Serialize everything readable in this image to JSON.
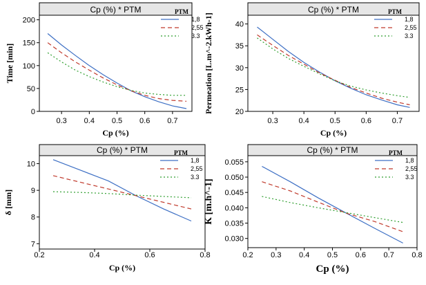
{
  "colors": {
    "series_1_8": "#3d6fc4",
    "series_2_55": "#c0392b",
    "series_3_3": "#2e9e2e",
    "frame": "#000000",
    "title_band": "#e6e6e6"
  },
  "chart_data": [
    {
      "type": "line",
      "title": "Cp (%) * PTM",
      "xlabel": "Cp (%)",
      "ylabel": "Time [min]",
      "xlim": [
        0.22,
        0.77
      ],
      "ylim": [
        0,
        210
      ],
      "xticks": [
        "0.3",
        "0.4",
        "0.5",
        "0.6",
        "0.7"
      ],
      "yticks": [
        "0",
        "50",
        "100",
        "150",
        "200"
      ],
      "legend_title": "PTM",
      "x": [
        0.25,
        0.3,
        0.35,
        0.4,
        0.45,
        0.5,
        0.55,
        0.6,
        0.65,
        0.7,
        0.75
      ],
      "series": [
        {
          "name": "1,8",
          "values": [
            170,
            145,
            122,
            100,
            80,
            62,
            45,
            32,
            21,
            12,
            6
          ]
        },
        {
          "name": "2,55",
          "values": [
            150,
            128,
            108,
            90,
            73,
            58,
            45,
            35,
            28,
            24,
            22
          ]
        },
        {
          "name": "3.3",
          "values": [
            128,
            108,
            90,
            76,
            64,
            54,
            46,
            40,
            37,
            35,
            35
          ]
        }
      ]
    },
    {
      "type": "line",
      "title": "Cp (%) * PTM",
      "xlabel": "Cp (%)",
      "ylabel": "Permeation [L.m^-2.kWh-1]",
      "xlim": [
        0.22,
        0.77
      ],
      "ylim": [
        20,
        42
      ],
      "xticks": [
        "0.3",
        "0.4",
        "0.5",
        "0.6",
        "0.7"
      ],
      "yticks": [
        "20",
        "25",
        "30",
        "35",
        "40"
      ],
      "legend_title": "PTM",
      "x": [
        0.25,
        0.3,
        0.35,
        0.4,
        0.45,
        0.5,
        0.55,
        0.6,
        0.65,
        0.7,
        0.74
      ],
      "series": [
        {
          "name": "1,8",
          "values": [
            39.3,
            36.5,
            33.7,
            31.2,
            29.0,
            27.0,
            25.3,
            23.8,
            22.6,
            21.5,
            20.9
          ]
        },
        {
          "name": "2,55",
          "values": [
            37.5,
            35.1,
            32.8,
            30.8,
            28.8,
            27.1,
            25.5,
            24.2,
            23.0,
            22.1,
            21.5
          ]
        },
        {
          "name": "3.3",
          "values": [
            36.8,
            34.3,
            32.1,
            30.3,
            28.6,
            27.0,
            25.8,
            24.9,
            24.2,
            23.6,
            23.2
          ]
        }
      ]
    },
    {
      "type": "line",
      "title": "Cp (%) * PTM",
      "xlabel": "Cp (%)",
      "ylabel": "δ [mm]",
      "xlim": [
        0.2,
        0.8
      ],
      "ylim": [
        6.8,
        10.3
      ],
      "xticks": [
        "0.2",
        "0.4",
        "0.6",
        "0.8"
      ],
      "yticks": [
        "7",
        "8",
        "9",
        "10"
      ],
      "legend_title": "PTM",
      "x": [
        0.25,
        0.35,
        0.45,
        0.55,
        0.65,
        0.75
      ],
      "series": [
        {
          "name": "1,8",
          "values": [
            10.15,
            9.75,
            9.35,
            8.8,
            8.3,
            7.85
          ]
        },
        {
          "name": "2,55",
          "values": [
            9.55,
            9.3,
            9.05,
            8.8,
            8.55,
            8.3
          ]
        },
        {
          "name": "3.3",
          "values": [
            8.95,
            8.92,
            8.88,
            8.82,
            8.77,
            8.72
          ]
        }
      ]
    },
    {
      "type": "line",
      "title": "Cp (%) * PTM",
      "xlabel": "Cp (%)",
      "ylabel": "K [m.h^-1]",
      "xlim": [
        0.2,
        0.8
      ],
      "ylim": [
        0.027,
        0.057
      ],
      "xticks": [
        "0.2",
        "0.3",
        "0.4",
        "0.5",
        "0.6",
        "0.7",
        "0.8"
      ],
      "yticks": [
        "0.030",
        "0.035",
        "0.040",
        "0.045",
        "0.050",
        "0.055"
      ],
      "legend_title": "PTM",
      "x": [
        0.25,
        0.35,
        0.45,
        0.55,
        0.65,
        0.75
      ],
      "series": [
        {
          "name": "1,8",
          "values": [
            0.0535,
            0.0485,
            0.0432,
            0.0382,
            0.0333,
            0.0285
          ]
        },
        {
          "name": "2,55",
          "values": [
            0.0485,
            0.0455,
            0.0418,
            0.0382,
            0.0355,
            0.0322
          ]
        },
        {
          "name": "3.3",
          "values": [
            0.0437,
            0.0417,
            0.04,
            0.0384,
            0.0368,
            0.0352
          ]
        }
      ]
    }
  ]
}
